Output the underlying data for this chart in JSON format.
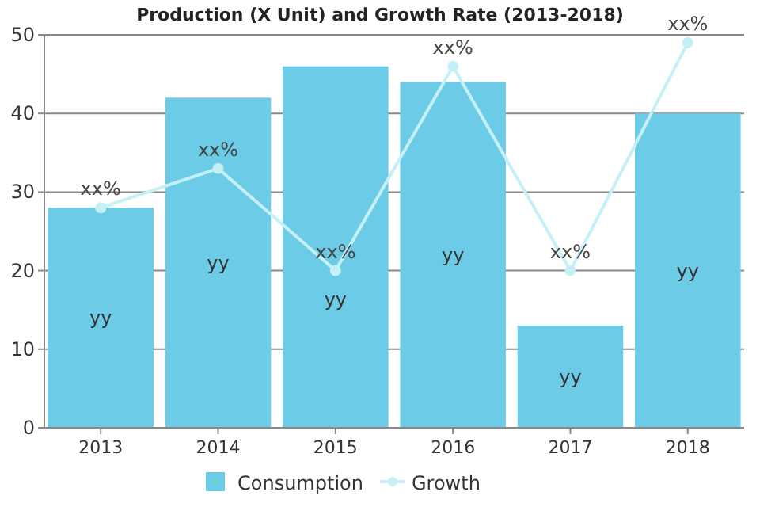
{
  "chart_data": {
    "type": "bar",
    "title": "Production (X Unit) and Growth Rate (2013-2018)",
    "categories": [
      "2013",
      "2014",
      "2015",
      "2016",
      "2017",
      "2018"
    ],
    "series": [
      {
        "name": "Consumption",
        "color": "#6ccbe6",
        "values": [
          28,
          42,
          46,
          44,
          13,
          40
        ],
        "value_labels": [
          "yy",
          "yy",
          "yy",
          "yy",
          "yy",
          "yy"
        ]
      },
      {
        "name": "Growth",
        "type": "line",
        "color": "#c5f1f6",
        "marker": "circle",
        "values": [
          28,
          33,
          20,
          46,
          20,
          49
        ],
        "value_labels": [
          "xx%",
          "xx%",
          "xx%",
          "xx%",
          "xx%",
          "xx%"
        ]
      }
    ],
    "ylim": [
      0,
      50
    ],
    "yticks": [
      0,
      10,
      20,
      30,
      40,
      50
    ],
    "grid": "y",
    "legend": "bottom"
  }
}
